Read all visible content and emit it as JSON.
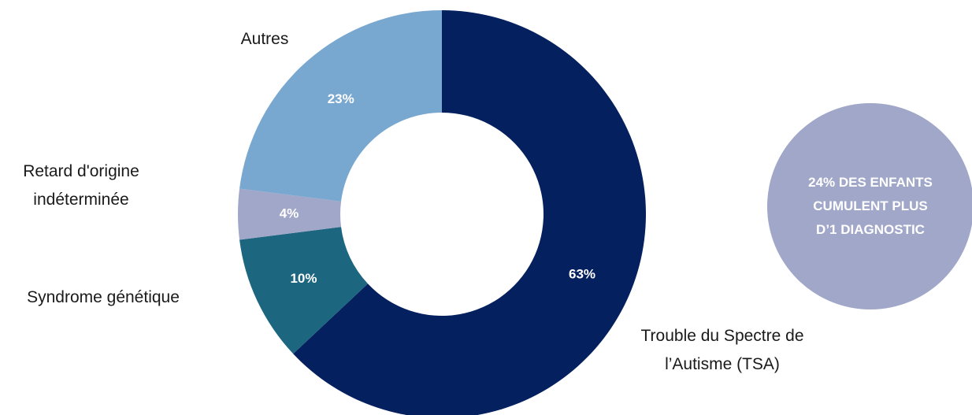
{
  "chart_data": {
    "type": "donut",
    "categories": [
      "Trouble du Spectre de l’Autisme (TSA)",
      "Syndrome génétique",
      "Retard d'origine indéterminée",
      "Autres"
    ],
    "values": [
      63,
      10,
      4,
      23
    ],
    "value_labels": [
      "63%",
      "10%",
      "4%",
      "23%"
    ],
    "colors": [
      "#04205f",
      "#1d6680",
      "#a0a7c8",
      "#78a7cf"
    ],
    "annotation": "24% DES ENFANTS CUMULENT PLUS D’1 DIAGNOSTIC",
    "annotation_color": "#a0a7c8"
  }
}
